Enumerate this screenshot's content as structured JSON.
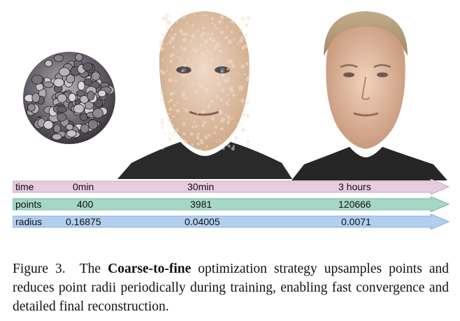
{
  "table": {
    "rows": [
      {
        "label": "time",
        "values": [
          "0min",
          "30min",
          "3 hours"
        ],
        "color": "#e3c3dd"
      },
      {
        "label": "points",
        "values": [
          "400",
          "3981",
          "120666"
        ],
        "color": "#9fd2bf"
      },
      {
        "label": "radius",
        "values": [
          "0.16875",
          "0.04005",
          "0.0071"
        ],
        "color": "#a9c6ec"
      }
    ]
  },
  "caption": {
    "label": "Figure 3.",
    "pre": "The ",
    "emphasis": "Coarse-to-fine",
    "post": " optimization strategy upsamples points and reduces point radii periodically during training, enabling fast convergence and detailed final reconstruction."
  }
}
